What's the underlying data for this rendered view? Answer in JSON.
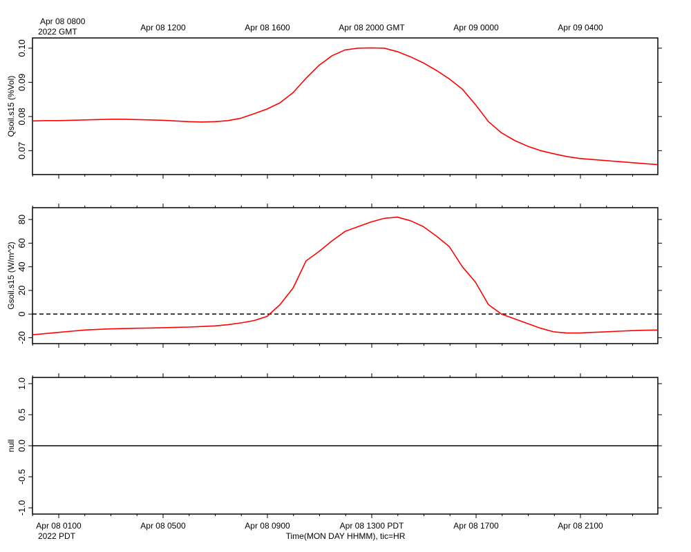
{
  "top_axis": {
    "first_label": "Apr 08 0800",
    "year_label": "2022 GMT",
    "labels": [
      "Apr 08 1200",
      "Apr 08 1600",
      "Apr 08 2000 GMT",
      "Apr 09 0000",
      "Apr 09 0400"
    ]
  },
  "bottom_axis": {
    "labels": [
      "Apr 08 0100",
      "Apr 08 0500",
      "Apr 08 0900",
      "Apr 08 1300 PDT",
      "Apr 08 1700",
      "Apr 08 2100"
    ],
    "year_label": "2022 PDT",
    "title": "Time(MON DAY HHMM), tic=HR"
  },
  "style": {
    "line_color": "#ff0000",
    "axis_color": "#000000",
    "zero_line_color": "#000000"
  },
  "chart_data": [
    {
      "type": "line",
      "ylabel": "Qsoil.s15 (%Vol)",
      "ylim": [
        0.063,
        0.103
      ],
      "yticks": [
        0.07,
        0.08,
        0.09,
        0.1
      ],
      "ytick_labels": [
        "0.07",
        "0.08",
        "0.09",
        "0.10"
      ],
      "x_unit": "hours PDT, Apr 08 2022",
      "xlim": [
        0,
        24
      ],
      "series": [
        {
          "x": [
            0,
            0.5,
            1,
            1.5,
            2,
            2.5,
            3,
            3.5,
            4,
            4.5,
            5,
            5.5,
            6,
            6.5,
            7,
            7.5,
            8,
            8.5,
            9,
            9.5,
            10,
            10.5,
            11,
            11.5,
            12,
            12.5,
            13,
            13.5,
            14,
            14.5,
            15,
            15.5,
            16,
            16.5,
            17,
            17.5,
            18,
            18.5,
            19,
            19.5,
            20,
            20.5,
            21,
            21.5,
            22,
            22.5,
            23,
            23.5,
            24
          ],
          "y": [
            0.0787,
            0.0788,
            0.0788,
            0.0789,
            0.079,
            0.0791,
            0.0792,
            0.0792,
            0.0791,
            0.079,
            0.0789,
            0.0787,
            0.0785,
            0.0784,
            0.0785,
            0.0788,
            0.0795,
            0.0808,
            0.0822,
            0.084,
            0.087,
            0.0912,
            0.095,
            0.0978,
            0.0995,
            0.1,
            0.1001,
            0.1,
            0.099,
            0.0975,
            0.0957,
            0.0935,
            0.091,
            0.088,
            0.0835,
            0.0785,
            0.0752,
            0.073,
            0.0713,
            0.07,
            0.0691,
            0.0683,
            0.0677,
            0.0674,
            0.0671,
            0.0668,
            0.0665,
            0.0662,
            0.0659
          ]
        }
      ]
    },
    {
      "type": "line",
      "ylabel": "Gsoil.s15 (W/m^2)",
      "ylim": [
        -25,
        90
      ],
      "yticks": [
        -20,
        0,
        20,
        40,
        60,
        80
      ],
      "ytick_labels": [
        "-20",
        "0",
        "20",
        "40",
        "60",
        "80"
      ],
      "zero_line": true,
      "x_unit": "hours PDT, Apr 08 2022",
      "xlim": [
        0,
        24
      ],
      "series": [
        {
          "x": [
            0,
            0.5,
            1,
            1.5,
            2,
            2.5,
            3,
            3.5,
            4,
            4.5,
            5,
            5.5,
            6,
            6.5,
            7,
            7.5,
            8,
            8.5,
            9,
            9.5,
            10,
            10.5,
            11,
            11.5,
            12,
            12.5,
            13,
            13.5,
            14,
            14.5,
            15,
            15.5,
            16,
            16.5,
            17,
            17.5,
            18,
            18.5,
            19,
            19.5,
            20,
            20.5,
            21,
            21.5,
            22,
            22.5,
            23,
            23.5,
            24
          ],
          "y": [
            -17.5,
            -16.5,
            -15.5,
            -14.5,
            -13.5,
            -13,
            -12.5,
            -12.3,
            -12,
            -11.8,
            -11.5,
            -11.2,
            -11,
            -10.5,
            -10,
            -9,
            -7.5,
            -5.5,
            -2,
            8,
            22,
            45,
            53,
            62,
            70,
            74,
            78,
            81,
            82,
            79,
            74,
            66,
            57,
            40,
            27,
            8,
            0,
            -4,
            -8,
            -12,
            -15,
            -16,
            -16,
            -15.5,
            -15,
            -14.5,
            -14,
            -13.7,
            -13.5
          ]
        }
      ]
    },
    {
      "type": "line",
      "ylabel": "null",
      "ylim": [
        -1.1,
        1.1
      ],
      "yticks": [
        -1.0,
        -0.5,
        0.0,
        0.5,
        1.0
      ],
      "ytick_labels": [
        "-1.0",
        "-0.5",
        "0.0",
        "0.5",
        "1.0"
      ],
      "zero_line": true,
      "xlim": [
        0,
        24
      ],
      "series": []
    }
  ]
}
